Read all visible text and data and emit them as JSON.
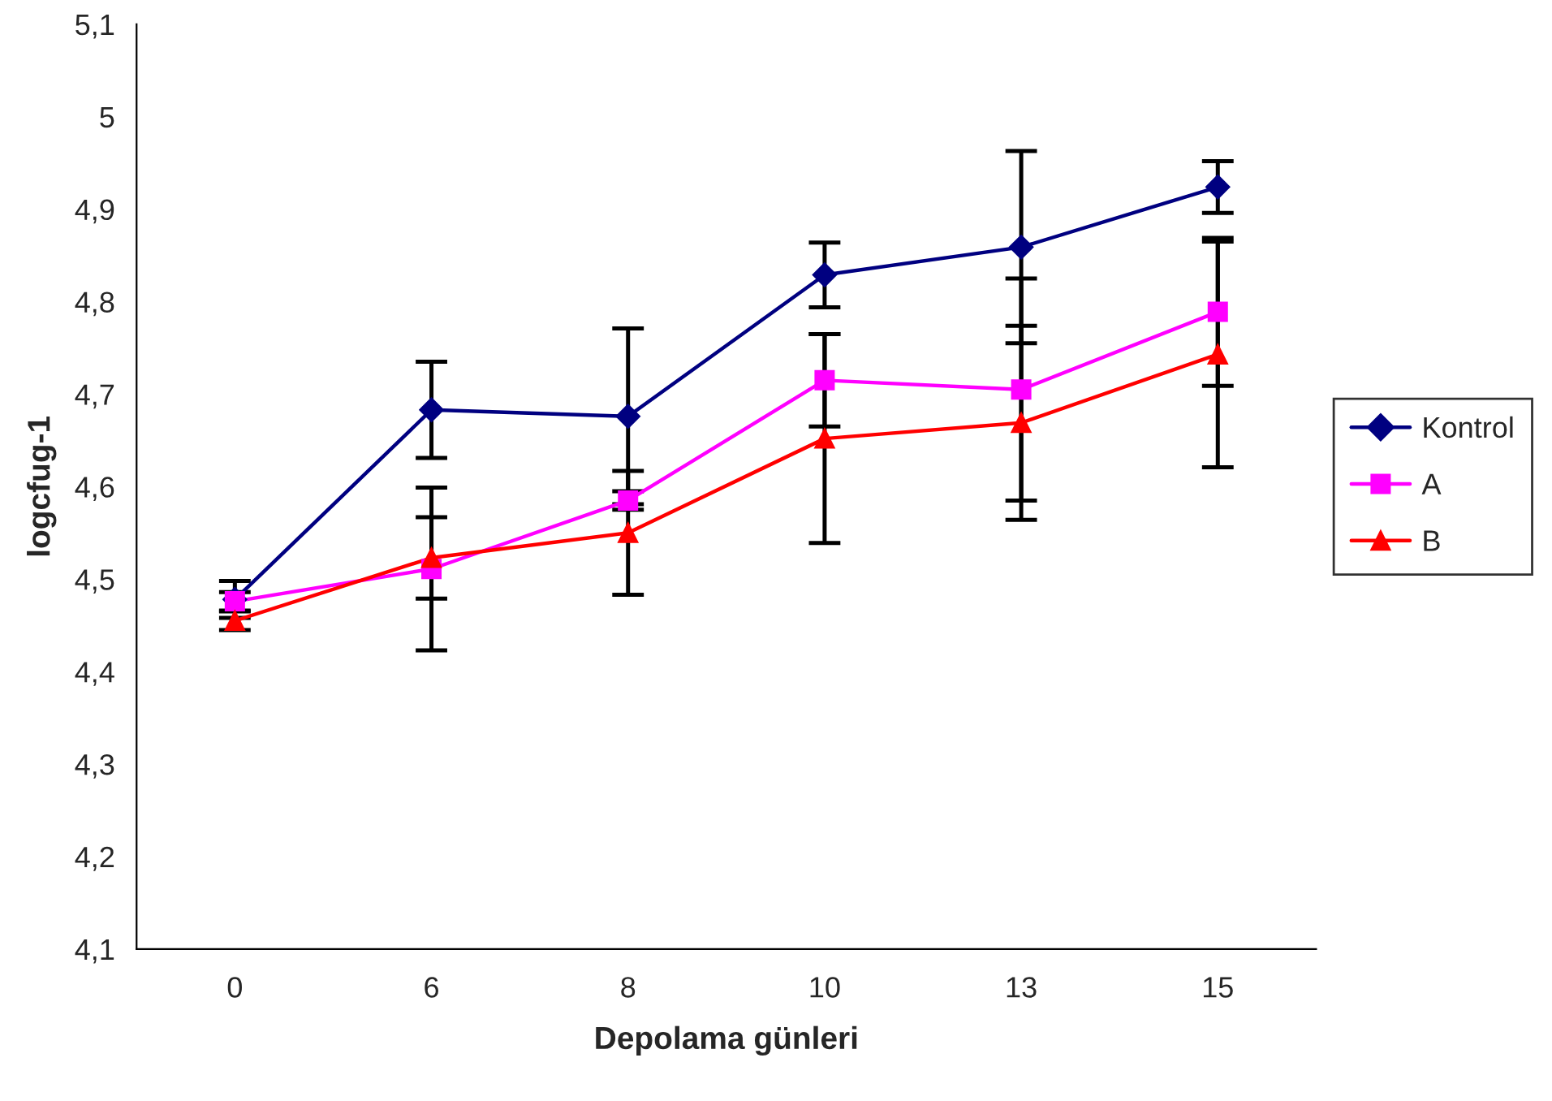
{
  "chart_data": {
    "type": "line",
    "xlabel": "Depolama günleri",
    "ylabel": "logcfug-1",
    "categories": [
      "0",
      "6",
      "8",
      "10",
      "13",
      "15"
    ],
    "series": [
      {
        "name": "Kontrol",
        "color": "#000080",
        "marker": "diamond",
        "values": [
          4.478,
          4.683,
          4.676,
          4.829,
          4.859,
          4.924
        ],
        "errors": [
          0.02,
          0.052,
          0.095,
          0.035,
          0.104,
          0.028
        ]
      },
      {
        "name": "A",
        "color": "#ff00ff",
        "marker": "square",
        "values": [
          4.476,
          4.511,
          4.585,
          4.715,
          4.705,
          4.789
        ],
        "errors": [
          0.01,
          0.088,
          0.01,
          0.05,
          0.12,
          0.08
        ]
      },
      {
        "name": "B",
        "color": "#ff0000",
        "marker": "triangle",
        "values": [
          4.455,
          4.523,
          4.55,
          4.652,
          4.669,
          4.743
        ],
        "errors": [
          0.01,
          0.044,
          0.067,
          0.113,
          0.105,
          0.122
        ]
      }
    ],
    "ylim": [
      4.1,
      5.1
    ],
    "yticks": [
      {
        "value": 4.1,
        "label": "4,1"
      },
      {
        "value": 4.2,
        "label": "4,2"
      },
      {
        "value": 4.3,
        "label": "4,3"
      },
      {
        "value": 4.4,
        "label": "4,4"
      },
      {
        "value": 4.5,
        "label": "4,5"
      },
      {
        "value": 4.6,
        "label": "4,6"
      },
      {
        "value": 4.7,
        "label": "4,7"
      },
      {
        "value": 4.8,
        "label": "4,8"
      },
      {
        "value": 4.9,
        "label": "4,9"
      },
      {
        "value": 5.0,
        "label": "5"
      },
      {
        "value": 5.1,
        "label": "5,1"
      }
    ],
    "grid": false,
    "legend": "right"
  }
}
